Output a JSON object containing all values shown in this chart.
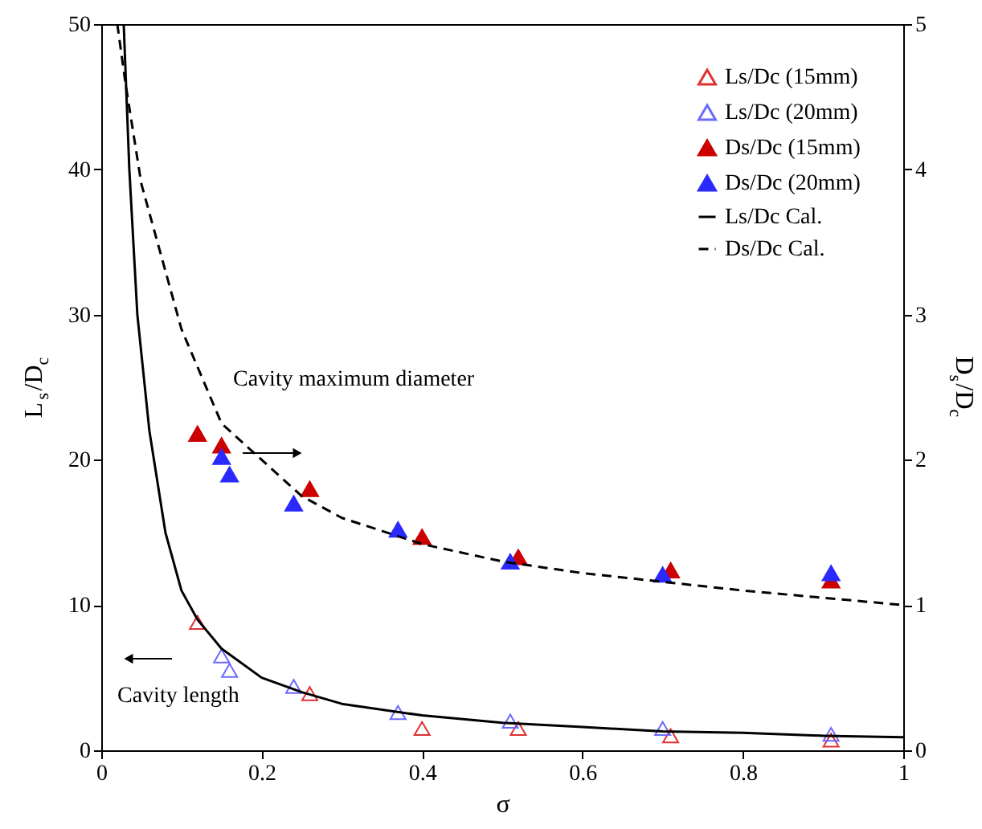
{
  "chart_data": {
    "type": "scatter",
    "xlabel": "σ",
    "ylabel": "L$_{s}$/D$_{c}$",
    "y2label": "D$_{s}$/D$_{c}$",
    "xlim": [
      0,
      1
    ],
    "xticks": [
      0,
      0.2,
      0.4,
      0.6,
      0.8,
      1
    ],
    "ylim": [
      0,
      50
    ],
    "yticks": [
      0,
      10,
      20,
      30,
      40,
      50
    ],
    "y2lim": [
      0,
      5
    ],
    "y2ticks": [
      0,
      1,
      2,
      3,
      4,
      5
    ],
    "grid": false,
    "legend": "top right",
    "marker": "triangle",
    "annotations": [
      "Cavity maximum diameter",
      "Cavity length"
    ],
    "series": [
      {
        "name": "Ls/Dc (15mm)",
        "color": "#e03030",
        "x": [
          0.12,
          0.26,
          0.4,
          0.52,
          0.71,
          0.91
        ],
        "values": [
          8.8,
          3.9,
          1.5,
          1.5,
          1.0,
          0.7
        ]
      },
      {
        "name": "Ls/Dc (20mm)",
        "color": "#6a6aff",
        "x": [
          0.15,
          0.16,
          0.24,
          0.37,
          0.51,
          0.7,
          0.91
        ],
        "values": [
          6.5,
          5.5,
          4.4,
          2.6,
          2.0,
          1.5,
          1.1
        ]
      },
      {
        "name": "Ds/Dc (15mm)",
        "color": "#cc0000",
        "axis": "y2",
        "x": [
          0.12,
          0.15,
          0.26,
          0.4,
          0.52,
          0.71,
          0.91
        ],
        "values": [
          2.18,
          2.1,
          1.8,
          1.47,
          1.33,
          1.24,
          1.17
        ]
      },
      {
        "name": "Ds/Dc (20mm)",
        "color": "#2a2aff",
        "axis": "y2",
        "x": [
          0.15,
          0.16,
          0.24,
          0.37,
          0.51,
          0.7,
          0.91
        ],
        "values": [
          2.02,
          1.9,
          1.7,
          1.52,
          1.3,
          1.21,
          1.22
        ]
      },
      {
        "name": "Ls/Dc Cal.",
        "type": "line",
        "line_style": "solid",
        "marker": "none",
        "color": "#000000",
        "x": [
          0.028,
          0.035,
          0.045,
          0.06,
          0.08,
          0.1,
          0.12,
          0.15,
          0.2,
          0.25,
          0.3,
          0.4,
          0.5,
          0.6,
          0.7,
          0.8,
          0.9,
          1.0
        ],
        "values": [
          50,
          40,
          30,
          22,
          15,
          11,
          9,
          7,
          5,
          4,
          3.2,
          2.4,
          1.9,
          1.6,
          1.3,
          1.2,
          1.0,
          0.9
        ]
      },
      {
        "name": "Ds/Dc Cal.",
        "type": "line",
        "line_style": "dashed",
        "marker": "none",
        "color": "#000000",
        "axis": "y2",
        "x": [
          0.02,
          0.03,
          0.05,
          0.1,
          0.15,
          0.2,
          0.25,
          0.3,
          0.4,
          0.5,
          0.6,
          0.7,
          0.8,
          0.9,
          1.0
        ],
        "values": [
          5.0,
          4.6,
          3.9,
          2.9,
          2.25,
          2.0,
          1.75,
          1.6,
          1.42,
          1.3,
          1.22,
          1.16,
          1.1,
          1.05,
          1.0
        ]
      }
    ]
  }
}
